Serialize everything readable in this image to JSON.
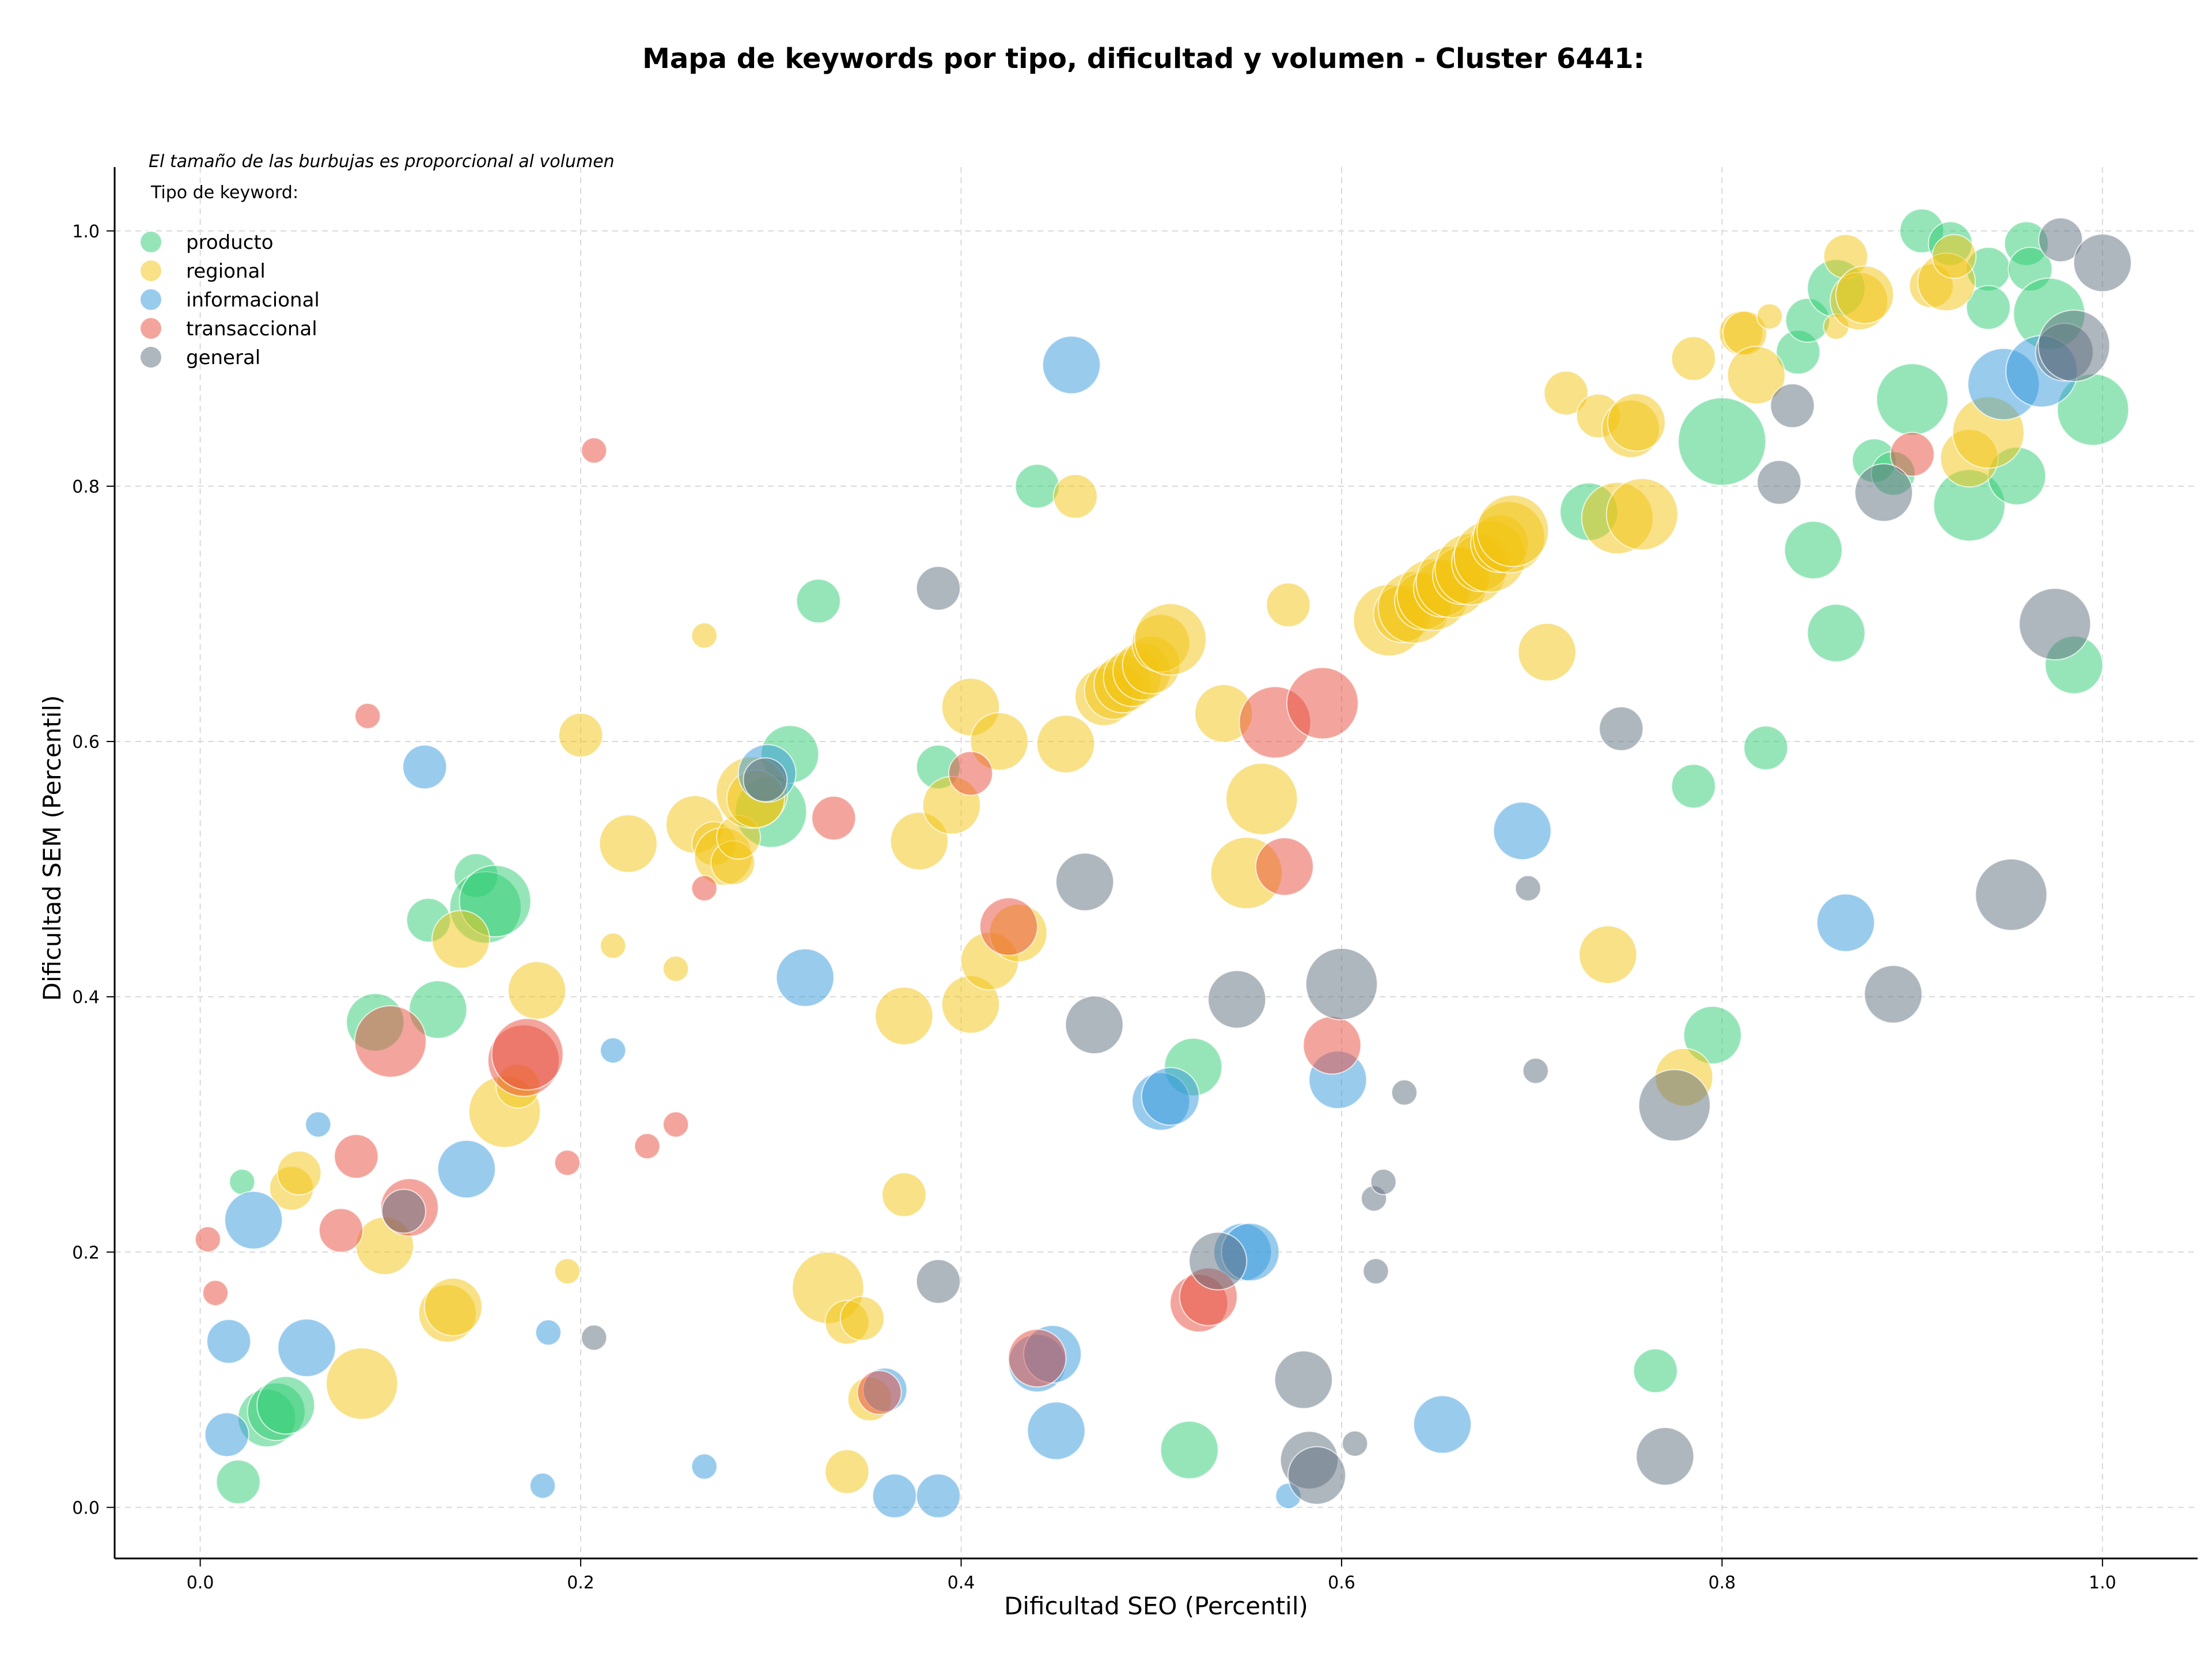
{
  "chart_data": {
    "type": "scatter",
    "title": "Mapa de keywords por tipo, dificultad y volumen - Cluster 6441:",
    "xlabel": "Dificultad SEO (Percentil)",
    "ylabel": "Dificultad SEM (Percentil)",
    "note": "El tamaño de las burbujas es proporcional al volumen",
    "legend_title": "Tipo de keyword:",
    "legend_position": "top-left",
    "xlim": [
      -0.045,
      1.05
    ],
    "ylim": [
      -0.04,
      1.05
    ],
    "x_ticks": [
      "0.0",
      "0.2",
      "0.4",
      "0.6",
      "0.8",
      "1.0"
    ],
    "y_ticks": [
      "0.0",
      "0.2",
      "0.4",
      "0.6",
      "0.8",
      "1.0"
    ],
    "grid": true,
    "series": [
      {
        "name": "producto",
        "color": "#2ecc71",
        "points": [
          [
            0.022,
            0.255,
            1
          ],
          [
            0.02,
            0.02,
            2
          ],
          [
            0.035,
            0.07,
            3
          ],
          [
            0.04,
            0.075,
            3
          ],
          [
            0.045,
            0.08,
            3
          ],
          [
            0.092,
            0.38,
            3
          ],
          [
            0.12,
            0.46,
            2
          ],
          [
            0.125,
            0.39,
            3
          ],
          [
            0.145,
            0.495,
            2
          ],
          [
            0.15,
            0.47,
            4
          ],
          [
            0.155,
            0.475,
            4
          ],
          [
            0.3,
            0.545,
            4
          ],
          [
            0.31,
            0.59,
            3
          ],
          [
            0.325,
            0.71,
            2
          ],
          [
            0.388,
            0.58,
            2
          ],
          [
            0.44,
            0.8,
            2
          ],
          [
            0.52,
            0.045,
            3
          ],
          [
            0.522,
            0.345,
            3
          ],
          [
            0.73,
            0.78,
            3
          ],
          [
            0.765,
            0.107,
            2
          ],
          [
            0.785,
            0.565,
            2
          ],
          [
            0.795,
            0.37,
            3
          ],
          [
            0.8,
            0.835,
            5
          ],
          [
            0.823,
            0.595,
            2
          ],
          [
            0.84,
            0.905,
            2
          ],
          [
            0.845,
            0.93,
            2
          ],
          [
            0.848,
            0.75,
            3
          ],
          [
            0.86,
            0.955,
            3
          ],
          [
            0.86,
            0.685,
            3
          ],
          [
            0.88,
            0.82,
            2
          ],
          [
            0.89,
            0.81,
            2
          ],
          [
            0.9,
            0.868,
            4
          ],
          [
            0.905,
            1.0,
            2
          ],
          [
            0.92,
            0.99,
            2
          ],
          [
            0.93,
            0.785,
            4
          ],
          [
            0.94,
            0.97,
            2
          ],
          [
            0.94,
            0.94,
            2
          ],
          [
            0.955,
            0.808,
            3
          ],
          [
            0.96,
            0.99,
            2
          ],
          [
            0.962,
            0.97,
            2
          ],
          [
            0.972,
            0.935,
            4
          ],
          [
            0.985,
            0.66,
            3
          ],
          [
            0.995,
            0.86,
            4
          ]
        ]
      },
      {
        "name": "regional",
        "color": "#f1c40f",
        "points": [
          [
            0.048,
            0.25,
            2
          ],
          [
            0.052,
            0.262,
            2
          ],
          [
            0.085,
            0.097,
            4
          ],
          [
            0.097,
            0.205,
            3
          ],
          [
            0.13,
            0.152,
            3
          ],
          [
            0.133,
            0.157,
            3
          ],
          [
            0.137,
            0.445,
            3
          ],
          [
            0.16,
            0.31,
            4
          ],
          [
            0.167,
            0.33,
            2
          ],
          [
            0.177,
            0.405,
            3
          ],
          [
            0.193,
            0.185,
            1
          ],
          [
            0.2,
            0.605,
            2
          ],
          [
            0.217,
            0.44,
            1
          ],
          [
            0.225,
            0.52,
            3
          ],
          [
            0.25,
            0.422,
            1
          ],
          [
            0.26,
            0.535,
            3
          ],
          [
            0.265,
            0.683,
            1
          ],
          [
            0.27,
            0.52,
            2
          ],
          [
            0.275,
            0.51,
            3
          ],
          [
            0.28,
            0.505,
            2
          ],
          [
            0.283,
            0.525,
            2
          ],
          [
            0.29,
            0.56,
            4
          ],
          [
            0.292,
            0.555,
            3
          ],
          [
            0.33,
            0.172,
            4
          ],
          [
            0.34,
            0.028,
            2
          ],
          [
            0.34,
            0.145,
            2
          ],
          [
            0.348,
            0.148,
            2
          ],
          [
            0.352,
            0.085,
            2
          ],
          [
            0.37,
            0.245,
            2
          ],
          [
            0.37,
            0.385,
            3
          ],
          [
            0.378,
            0.522,
            3
          ],
          [
            0.395,
            0.55,
            3
          ],
          [
            0.405,
            0.627,
            3
          ],
          [
            0.405,
            0.394,
            3
          ],
          [
            0.415,
            0.428,
            3
          ],
          [
            0.42,
            0.6,
            3
          ],
          [
            0.43,
            0.45,
            3
          ],
          [
            0.455,
            0.598,
            3
          ],
          [
            0.46,
            0.792,
            2
          ],
          [
            0.475,
            0.635,
            3
          ],
          [
            0.48,
            0.64,
            3
          ],
          [
            0.485,
            0.645,
            3
          ],
          [
            0.49,
            0.65,
            3
          ],
          [
            0.495,
            0.655,
            3
          ],
          [
            0.5,
            0.66,
            3
          ],
          [
            0.505,
            0.677,
            3
          ],
          [
            0.51,
            0.68,
            4
          ],
          [
            0.538,
            0.622,
            3
          ],
          [
            0.55,
            0.497,
            4
          ],
          [
            0.558,
            0.555,
            4
          ],
          [
            0.572,
            0.707,
            2
          ],
          [
            0.625,
            0.695,
            4
          ],
          [
            0.632,
            0.7,
            3
          ],
          [
            0.638,
            0.705,
            4
          ],
          [
            0.643,
            0.71,
            3
          ],
          [
            0.648,
            0.715,
            4
          ],
          [
            0.653,
            0.72,
            3
          ],
          [
            0.658,
            0.725,
            4
          ],
          [
            0.663,
            0.73,
            3
          ],
          [
            0.668,
            0.735,
            4
          ],
          [
            0.673,
            0.74,
            3
          ],
          [
            0.678,
            0.745,
            4
          ],
          [
            0.683,
            0.755,
            3
          ],
          [
            0.688,
            0.76,
            4
          ],
          [
            0.69,
            0.765,
            4
          ],
          [
            0.708,
            0.67,
            3
          ],
          [
            0.718,
            0.873,
            2
          ],
          [
            0.735,
            0.855,
            2
          ],
          [
            0.74,
            0.433,
            3
          ],
          [
            0.745,
            0.775,
            4
          ],
          [
            0.752,
            0.845,
            3
          ],
          [
            0.755,
            0.85,
            3
          ],
          [
            0.758,
            0.778,
            4
          ],
          [
            0.78,
            0.337,
            3
          ],
          [
            0.785,
            0.9,
            2
          ],
          [
            0.81,
            0.92,
            2
          ],
          [
            0.812,
            0.92,
            2
          ],
          [
            0.818,
            0.887,
            3
          ],
          [
            0.825,
            0.933,
            1
          ],
          [
            0.86,
            0.925,
            1
          ],
          [
            0.865,
            0.98,
            2
          ],
          [
            0.872,
            0.945,
            3
          ],
          [
            0.875,
            0.95,
            3
          ],
          [
            0.91,
            0.957,
            2
          ],
          [
            0.918,
            0.96,
            3
          ],
          [
            0.922,
            0.98,
            2
          ],
          [
            0.93,
            0.822,
            3
          ],
          [
            0.94,
            0.842,
            4
          ]
        ]
      },
      {
        "name": "informacional",
        "color": "#3498db",
        "points": [
          [
            0.014,
            0.057,
            2
          ],
          [
            0.015,
            0.13,
            2
          ],
          [
            0.028,
            0.225,
            3
          ],
          [
            0.056,
            0.125,
            3
          ],
          [
            0.062,
            0.3,
            1
          ],
          [
            0.118,
            0.58,
            2
          ],
          [
            0.14,
            0.265,
            3
          ],
          [
            0.18,
            0.017,
            1
          ],
          [
            0.183,
            0.137,
            1
          ],
          [
            0.217,
            0.358,
            1
          ],
          [
            0.265,
            0.032,
            1
          ],
          [
            0.298,
            0.575,
            3
          ],
          [
            0.318,
            0.415,
            3
          ],
          [
            0.36,
            0.092,
            2
          ],
          [
            0.365,
            0.009,
            2
          ],
          [
            0.388,
            0.009,
            2
          ],
          [
            0.44,
            0.113,
            3
          ],
          [
            0.448,
            0.12,
            3
          ],
          [
            0.45,
            0.06,
            3
          ],
          [
            0.458,
            0.895,
            3
          ],
          [
            0.505,
            0.318,
            3
          ],
          [
            0.51,
            0.322,
            3
          ],
          [
            0.548,
            0.2,
            3
          ],
          [
            0.552,
            0.2,
            3
          ],
          [
            0.572,
            0.009,
            1
          ],
          [
            0.598,
            0.335,
            3
          ],
          [
            0.653,
            0.065,
            3
          ],
          [
            0.695,
            0.53,
            3
          ],
          [
            0.865,
            0.458,
            3
          ],
          [
            0.948,
            0.88,
            4
          ],
          [
            0.968,
            0.89,
            4
          ]
        ]
      },
      {
        "name": "transaccional",
        "color": "#e74c3c",
        "points": [
          [
            0.004,
            0.21,
            1
          ],
          [
            0.008,
            0.168,
            1
          ],
          [
            0.074,
            0.217,
            2
          ],
          [
            0.082,
            0.275,
            2
          ],
          [
            0.088,
            0.62,
            1
          ],
          [
            0.1,
            0.365,
            4
          ],
          [
            0.11,
            0.235,
            3
          ],
          [
            0.17,
            0.35,
            4
          ],
          [
            0.172,
            0.355,
            4
          ],
          [
            0.193,
            0.27,
            1
          ],
          [
            0.207,
            0.828,
            1
          ],
          [
            0.235,
            0.283,
            1
          ],
          [
            0.25,
            0.3,
            1
          ],
          [
            0.265,
            0.485,
            1
          ],
          [
            0.333,
            0.54,
            2
          ],
          [
            0.357,
            0.09,
            2
          ],
          [
            0.405,
            0.575,
            2
          ],
          [
            0.425,
            0.455,
            3
          ],
          [
            0.44,
            0.117,
            3
          ],
          [
            0.525,
            0.16,
            3
          ],
          [
            0.53,
            0.165,
            3
          ],
          [
            0.565,
            0.615,
            4
          ],
          [
            0.57,
            0.502,
            3
          ],
          [
            0.59,
            0.63,
            4
          ],
          [
            0.595,
            0.362,
            3
          ],
          [
            0.9,
            0.825,
            2
          ]
        ]
      },
      {
        "name": "general",
        "color": "#5d6d7e",
        "points": [
          [
            0.107,
            0.232,
            2
          ],
          [
            0.207,
            0.133,
            1
          ],
          [
            0.297,
            0.57,
            2
          ],
          [
            0.388,
            0.72,
            2
          ],
          [
            0.388,
            0.177,
            2
          ],
          [
            0.465,
            0.49,
            3
          ],
          [
            0.47,
            0.378,
            3
          ],
          [
            0.535,
            0.193,
            3
          ],
          [
            0.545,
            0.398,
            3
          ],
          [
            0.58,
            0.1,
            3
          ],
          [
            0.583,
            0.037,
            3
          ],
          [
            0.587,
            0.025,
            3
          ],
          [
            0.6,
            0.41,
            4
          ],
          [
            0.607,
            0.05,
            1
          ],
          [
            0.617,
            0.242,
            1
          ],
          [
            0.618,
            0.185,
            1
          ],
          [
            0.622,
            0.255,
            1
          ],
          [
            0.633,
            0.325,
            1
          ],
          [
            0.698,
            0.485,
            1
          ],
          [
            0.702,
            0.342,
            1
          ],
          [
            0.747,
            0.61,
            2
          ],
          [
            0.77,
            0.04,
            3
          ],
          [
            0.775,
            0.315,
            4
          ],
          [
            0.83,
            0.803,
            2
          ],
          [
            0.837,
            0.863,
            2
          ],
          [
            0.885,
            0.795,
            3
          ],
          [
            0.89,
            0.402,
            3
          ],
          [
            0.952,
            0.48,
            4
          ],
          [
            0.975,
            0.692,
            4
          ],
          [
            0.978,
            0.993,
            2
          ],
          [
            0.98,
            0.905,
            3
          ],
          [
            0.985,
            0.91,
            4
          ],
          [
            1.0,
            0.975,
            3
          ]
        ]
      }
    ]
  }
}
